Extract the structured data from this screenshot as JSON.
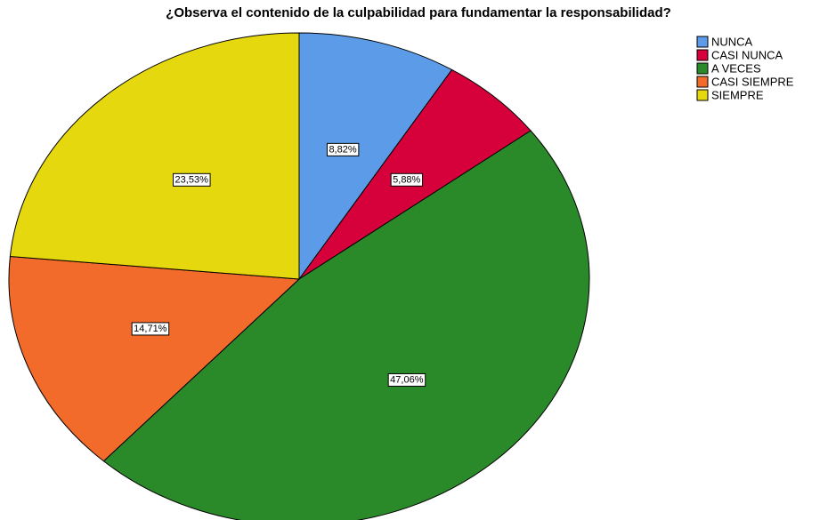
{
  "chart_data": {
    "type": "pie",
    "title": "¿Observa el contenido de la culpabilidad para fundamentar la responsabilidad?",
    "categories": [
      "NUNCA",
      "CASI NUNCA",
      "A VECES",
      "CASI SIEMPRE",
      "SIEMPRE"
    ],
    "values": [
      8.82,
      5.88,
      47.06,
      14.71,
      23.53
    ],
    "value_labels": [
      "8,82%",
      "5,88%",
      "47,06%",
      "14,71%",
      "23,53%"
    ],
    "colors": [
      "#5b9be8",
      "#d6003a",
      "#2a8a2a",
      "#f26b2b",
      "#e5d80f"
    ],
    "legend": "top-right"
  }
}
